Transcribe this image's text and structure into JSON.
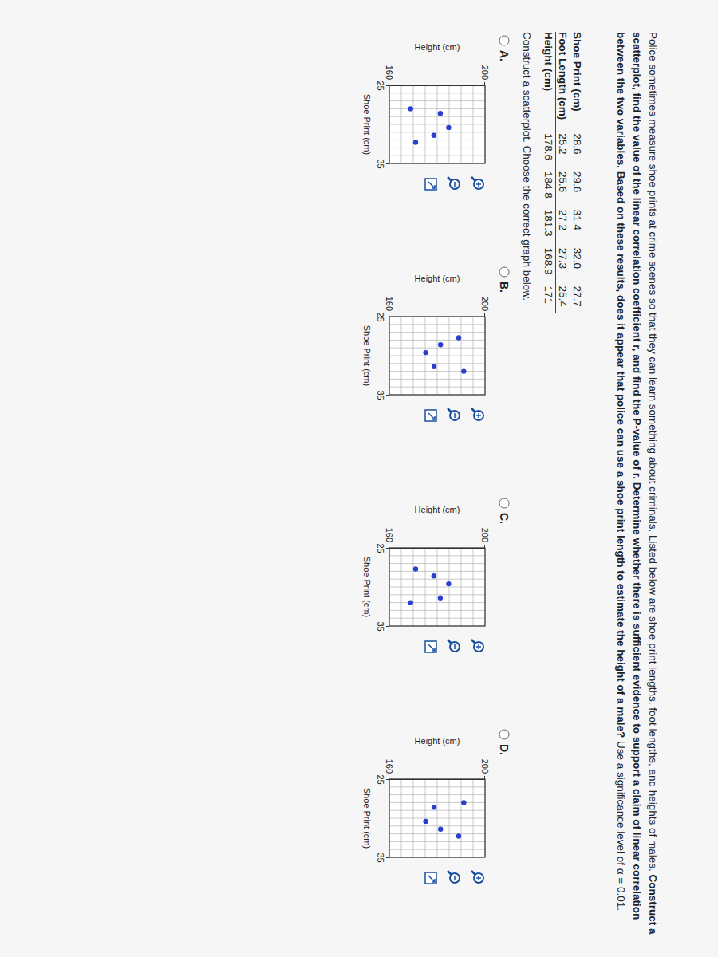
{
  "question": {
    "intro": "Police sometimes measure shoe prints at crime scenes so that they can learn something about criminals. Listed below are shoe print lengths, foot lengths, and heights of males.",
    "bold": "Construct a scatterplot, find the value of the linear correlation coefficient r, and find the P-value of r. Determine whether there is sufficient evidence to support a claim of linear correlation between the two variables. Based on these results, does it appear that police can use a shoe print length to estimate the height of a male?",
    "end": "Use a significance level of α = 0.01."
  },
  "table": {
    "rows": [
      [
        "Shoe Print (cm)",
        "28.6",
        "29.6",
        "31.4",
        "32.0",
        "27.7"
      ],
      [
        "Foot Length (cm)",
        "25.2",
        "25.6",
        "27.2",
        "27.3",
        "25.4"
      ],
      [
        "Height (cm)",
        "178.6",
        "184.8",
        "181.3",
        "168.9",
        "171"
      ]
    ]
  },
  "instruction": "Construct a scatterplot. Choose the correct graph below.",
  "options": [
    "A.",
    "B.",
    "C.",
    "D."
  ],
  "chart_data": [
    {
      "type": "scatter",
      "x_label": "Shoe Print (cm)",
      "y_label": "Height (cm)",
      "x": [
        31.4,
        30.4,
        28.6,
        28.0,
        32.3
      ],
      "y": [
        178.6,
        184.8,
        181.3,
        168.9,
        171
      ],
      "xlim": [
        25,
        35
      ],
      "ylim": [
        160,
        200
      ],
      "xticks": [
        25,
        35
      ],
      "yticks": [
        160,
        200
      ],
      "grid": true,
      "color": "#2a3fd0",
      "marker": "circle"
    },
    {
      "type": "scatter",
      "x_label": "Shoe Print (cm)",
      "y_label": "Height (cm)",
      "x": [
        28.6,
        29.6,
        31.4,
        32.0,
        27.7
      ],
      "y": [
        181.4,
        175.2,
        178.7,
        191.1,
        189
      ],
      "xlim": [
        25,
        35
      ],
      "ylim": [
        160,
        200
      ],
      "xticks": [
        25,
        35
      ],
      "yticks": [
        160,
        200
      ],
      "grid": true,
      "color": "#2a3fd0",
      "marker": "circle"
    },
    {
      "type": "scatter",
      "x_label": "Shoe Print (cm)",
      "y_label": "Height (cm)",
      "x": [
        28.6,
        29.6,
        31.4,
        32.0,
        27.7
      ],
      "y": [
        178.6,
        184.8,
        181.3,
        168.9,
        171
      ],
      "xlim": [
        25,
        35
      ],
      "ylim": [
        160,
        200
      ],
      "xticks": [
        25,
        35
      ],
      "yticks": [
        160,
        200
      ],
      "grid": true,
      "color": "#2a3fd0",
      "marker": "circle"
    },
    {
      "type": "scatter",
      "x_label": "Shoe Print (cm)",
      "y_label": "Height (cm)",
      "x": [
        31.4,
        30.4,
        28.6,
        28.0,
        32.3
      ],
      "y": [
        181.4,
        175.2,
        178.7,
        191.1,
        189
      ],
      "xlim": [
        25,
        35
      ],
      "ylim": [
        160,
        200
      ],
      "xticks": [
        25,
        35
      ],
      "yticks": [
        160,
        200
      ],
      "grid": true,
      "color": "#2a3fd0",
      "marker": "circle"
    }
  ]
}
